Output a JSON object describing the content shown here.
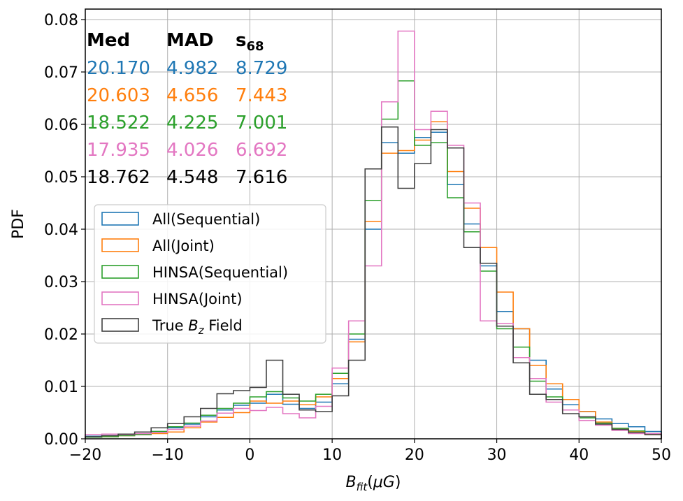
{
  "chart_data": {
    "type": "step-histogram",
    "xlabel": "B_fit (μG)",
    "ylabel": "PDF",
    "xlim": [
      -20,
      50
    ],
    "ylim": [
      0,
      0.082
    ],
    "grid": true,
    "x_ticks": [
      -20,
      -10,
      0,
      10,
      20,
      30,
      40,
      50
    ],
    "x_tick_labels": [
      "−20",
      "−10",
      "0",
      "10",
      "20",
      "30",
      "40",
      "50"
    ],
    "y_ticks": [
      0,
      0.01,
      0.02,
      0.03,
      0.04,
      0.05,
      0.06,
      0.07,
      0.08
    ],
    "y_tick_labels": [
      "0.00",
      "0.01",
      "0.02",
      "0.03",
      "0.04",
      "0.05",
      "0.06",
      "0.07",
      "0.08"
    ],
    "bin_edges": [
      -20,
      -18,
      -16,
      -14,
      -12,
      -10,
      -8,
      -6,
      -4,
      -2,
      0,
      2,
      4,
      6,
      8,
      10,
      12,
      14,
      16,
      18,
      20,
      22,
      24,
      26,
      28,
      30,
      32,
      34,
      36,
      38,
      40,
      42,
      44,
      46,
      48,
      50
    ],
    "series": [
      {
        "name": "All(Sequential)",
        "color": "#1f77b4",
        "values": [
          0.0005,
          0.0006,
          0.0007,
          0.0009,
          0.0014,
          0.0021,
          0.0028,
          0.0042,
          0.0055,
          0.0064,
          0.0068,
          0.0085,
          0.0066,
          0.0058,
          0.007,
          0.0105,
          0.019,
          0.04,
          0.0565,
          0.0545,
          0.0575,
          0.0585,
          0.0485,
          0.041,
          0.033,
          0.0243,
          0.021,
          0.015,
          0.0095,
          0.0065,
          0.0052,
          0.0038,
          0.0029,
          0.0023,
          0.0014
        ]
      },
      {
        "name": "All(Joint)",
        "color": "#ff7f0e",
        "values": [
          0.0003,
          0.0004,
          0.0006,
          0.0008,
          0.001,
          0.0013,
          0.0021,
          0.0032,
          0.0041,
          0.005,
          0.0072,
          0.0068,
          0.0072,
          0.0065,
          0.008,
          0.0115,
          0.0185,
          0.0415,
          0.0545,
          0.055,
          0.057,
          0.0605,
          0.051,
          0.044,
          0.0365,
          0.028,
          0.021,
          0.014,
          0.0105,
          0.0075,
          0.0052,
          0.0032,
          0.002,
          0.0014,
          0.0008
        ]
      },
      {
        "name": "HINSA(Sequential)",
        "color": "#2ca02c",
        "values": [
          0.0003,
          0.0004,
          0.0006,
          0.0008,
          0.0014,
          0.0023,
          0.003,
          0.0045,
          0.0058,
          0.0068,
          0.008,
          0.009,
          0.0078,
          0.0072,
          0.0085,
          0.0125,
          0.02,
          0.0455,
          0.061,
          0.0683,
          0.056,
          0.0565,
          0.046,
          0.0395,
          0.032,
          0.021,
          0.0175,
          0.011,
          0.008,
          0.0055,
          0.004,
          0.003,
          0.002,
          0.0015,
          0.001
        ]
      },
      {
        "name": "HINSA(Joint)",
        "color": "#e377c2",
        "values": [
          0.0008,
          0.0009,
          0.0008,
          0.001,
          0.0012,
          0.0018,
          0.0024,
          0.0034,
          0.0049,
          0.0058,
          0.0054,
          0.006,
          0.0048,
          0.004,
          0.0062,
          0.0135,
          0.0225,
          0.033,
          0.0643,
          0.0778,
          0.059,
          0.0625,
          0.056,
          0.045,
          0.0225,
          0.022,
          0.0155,
          0.0115,
          0.007,
          0.0055,
          0.0035,
          0.0026,
          0.0016,
          0.001,
          0.001
        ]
      },
      {
        "name": "True B_z Field",
        "color": "#404040",
        "values": [
          0.0004,
          0.0006,
          0.0009,
          0.0013,
          0.0021,
          0.0029,
          0.0042,
          0.0058,
          0.0086,
          0.0092,
          0.0098,
          0.015,
          0.0085,
          0.0055,
          0.0052,
          0.0082,
          0.015,
          0.0515,
          0.0595,
          0.0478,
          0.0525,
          0.059,
          0.0555,
          0.0365,
          0.0335,
          0.0215,
          0.0145,
          0.0085,
          0.0075,
          0.0048,
          0.0042,
          0.0028,
          0.0018,
          0.0012,
          0.0008
        ]
      }
    ],
    "stats_table": {
      "headers": [
        "Med",
        "MAD",
        "s68"
      ],
      "rows": [
        {
          "color": "#1f77b4",
          "med": "20.170",
          "mad": "4.982",
          "s68": "8.729"
        },
        {
          "color": "#ff7f0e",
          "med": "20.603",
          "mad": "4.656",
          "s68": "7.443"
        },
        {
          "color": "#2ca02c",
          "med": "18.522",
          "mad": "4.225",
          "s68": "7.001"
        },
        {
          "color": "#e377c2",
          "med": "17.935",
          "mad": "4.026",
          "s68": "6.692"
        },
        {
          "color": "#000000",
          "med": "18.762",
          "mad": "4.548",
          "s68": "7.616"
        }
      ]
    },
    "legend": {
      "location": "center-left",
      "entries": [
        {
          "label": "All(Sequential)",
          "color": "#1f77b4"
        },
        {
          "label": "All(Joint)",
          "color": "#ff7f0e"
        },
        {
          "label": "HINSA(Sequential)",
          "color": "#2ca02c"
        },
        {
          "label": "HINSA(Joint)",
          "color": "#e377c2"
        },
        {
          "label": "True B_z Field",
          "color": "#404040"
        }
      ]
    }
  }
}
